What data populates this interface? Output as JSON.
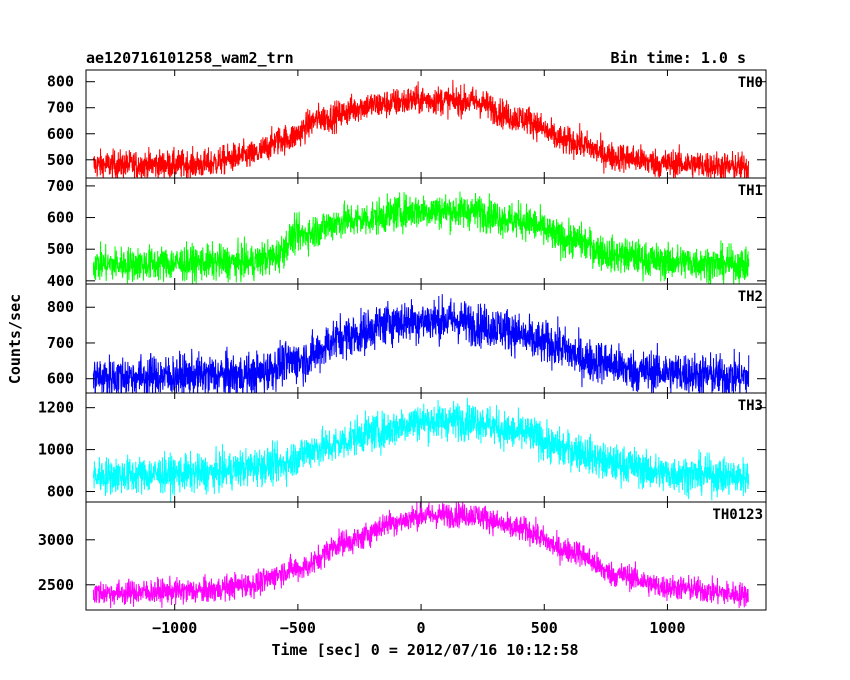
{
  "header": {
    "title": "ae120716101258_wam2_trn",
    "bin_time": "Bin time: 1.0 s"
  },
  "chart_data": {
    "type": "line",
    "xlabel": "Time [sec] 0 = 2012/07/16 10:12:58",
    "ylabel": "Counts/sec",
    "xlim": [
      -1360,
      1400
    ],
    "x_ticks": [
      -1000,
      -500,
      0,
      500,
      1000
    ],
    "x_tick_labels": [
      "−1000",
      "−500",
      "0",
      "500",
      "1000"
    ],
    "x_data_range": [
      -1330,
      1330
    ],
    "grid": false,
    "panels": [
      {
        "label": "TH0",
        "color": "#ff0000",
        "ylim": [
          430,
          845
        ],
        "y_ticks": [
          500,
          600,
          700,
          800
        ],
        "y_tick_labels": [
          "500",
          "600",
          "700",
          "800"
        ],
        "profile": [
          [
            -1330,
            480
          ],
          [
            -900,
            482
          ],
          [
            -700,
            515
          ],
          [
            -550,
            580
          ],
          [
            -400,
            660
          ],
          [
            -200,
            710
          ],
          [
            0,
            730
          ],
          [
            200,
            725
          ],
          [
            400,
            660
          ],
          [
            600,
            570
          ],
          [
            800,
            510
          ],
          [
            1000,
            485
          ],
          [
            1330,
            472
          ]
        ],
        "noise": 28
      },
      {
        "label": "TH1",
        "color": "#00ff00",
        "ylim": [
          390,
          725
        ],
        "y_ticks": [
          400,
          500,
          600,
          700
        ],
        "y_tick_labels": [
          "400",
          "500",
          "600",
          "700"
        ],
        "profile": [
          [
            -1330,
            452
          ],
          [
            -700,
            458
          ],
          [
            -600,
            475
          ],
          [
            -500,
            545
          ],
          [
            -300,
            590
          ],
          [
            0,
            622
          ],
          [
            200,
            620
          ],
          [
            400,
            590
          ],
          [
            600,
            530
          ],
          [
            800,
            480
          ],
          [
            1000,
            460
          ],
          [
            1330,
            450
          ]
        ],
        "noise": 28
      },
      {
        "label": "TH2",
        "color": "#0000ff",
        "ylim": [
          560,
          865
        ],
        "y_ticks": [
          600,
          700,
          800
        ],
        "y_tick_labels": [
          "600",
          "700",
          "800"
        ],
        "profile": [
          [
            -1330,
            605
          ],
          [
            -700,
            610
          ],
          [
            -500,
            650
          ],
          [
            -300,
            720
          ],
          [
            -100,
            760
          ],
          [
            100,
            765
          ],
          [
            300,
            745
          ],
          [
            500,
            700
          ],
          [
            700,
            650
          ],
          [
            900,
            620
          ],
          [
            1330,
            605
          ]
        ],
        "noise": 30
      },
      {
        "label": "TH3",
        "color": "#00ffff",
        "ylim": [
          750,
          1270
        ],
        "y_ticks": [
          800,
          1000,
          1200
        ],
        "y_tick_labels": [
          "800",
          "1000",
          "1200"
        ],
        "profile": [
          [
            -1330,
            875
          ],
          [
            -900,
            885
          ],
          [
            -600,
            925
          ],
          [
            -400,
            1010
          ],
          [
            -200,
            1080
          ],
          [
            0,
            1135
          ],
          [
            200,
            1140
          ],
          [
            400,
            1080
          ],
          [
            600,
            1000
          ],
          [
            800,
            930
          ],
          [
            1000,
            885
          ],
          [
            1330,
            870
          ]
        ],
        "noise": 45
      },
      {
        "label": "TH0123",
        "color": "#ff00ff",
        "ylim": [
          2220,
          3420
        ],
        "y_ticks": [
          2500,
          3000
        ],
        "y_tick_labels": [
          "2500",
          "3000"
        ],
        "profile": [
          [
            -1330,
            2410
          ],
          [
            -900,
            2430
          ],
          [
            -700,
            2500
          ],
          [
            -500,
            2680
          ],
          [
            -300,
            2980
          ],
          [
            -100,
            3200
          ],
          [
            0,
            3270
          ],
          [
            200,
            3280
          ],
          [
            400,
            3120
          ],
          [
            600,
            2880
          ],
          [
            800,
            2610
          ],
          [
            1000,
            2470
          ],
          [
            1330,
            2390
          ]
        ],
        "noise": 70
      }
    ]
  }
}
